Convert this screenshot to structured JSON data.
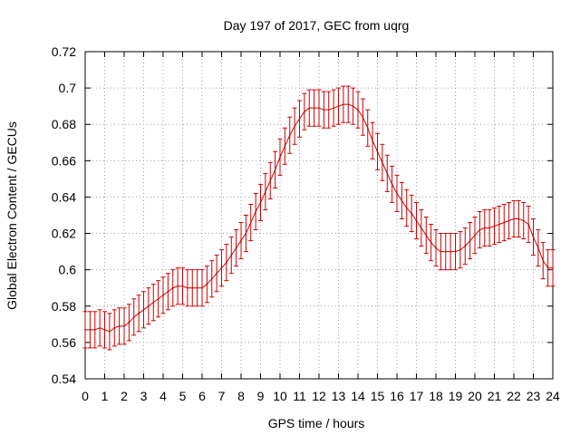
{
  "chart_data": {
    "type": "line",
    "title": "Day 197 of 2017, GEC from uqrg",
    "xlabel": "GPS time / hours",
    "ylabel": "Global Electron Content / GECUs",
    "xlim": [
      0,
      24
    ],
    "ylim": [
      0.54,
      0.72
    ],
    "xticks": [
      "0",
      "1",
      "2",
      "3",
      "4",
      "5",
      "6",
      "7",
      "8",
      "9",
      "10",
      "11",
      "12",
      "13",
      "14",
      "15",
      "16",
      "17",
      "18",
      "19",
      "20",
      "21",
      "22",
      "23",
      "24"
    ],
    "yticks": [
      "0.54",
      "0.56",
      "0.58",
      "0.6",
      "0.62",
      "0.64",
      "0.66",
      "0.68",
      "0.7",
      "0.72"
    ],
    "grid": true,
    "series": [
      {
        "color": "#cc0000",
        "error": 0.01,
        "x": [
          0,
          0.25,
          0.5,
          0.75,
          1,
          1.25,
          1.5,
          1.75,
          2,
          2.25,
          2.5,
          2.75,
          3,
          3.25,
          3.5,
          3.75,
          4,
          4.25,
          4.5,
          4.75,
          5,
          5.25,
          5.5,
          5.75,
          6,
          6.25,
          6.5,
          6.75,
          7,
          7.25,
          7.5,
          7.75,
          8,
          8.25,
          8.5,
          8.75,
          9,
          9.25,
          9.5,
          9.75,
          10,
          10.25,
          10.5,
          10.75,
          11,
          11.25,
          11.5,
          11.75,
          12,
          12.25,
          12.5,
          12.75,
          13,
          13.25,
          13.5,
          13.75,
          14,
          14.25,
          14.5,
          14.75,
          15,
          15.25,
          15.5,
          15.75,
          16,
          16.25,
          16.5,
          16.75,
          17,
          17.25,
          17.5,
          17.75,
          18,
          18.25,
          18.5,
          18.75,
          19,
          19.25,
          19.5,
          19.75,
          20,
          20.25,
          20.5,
          20.75,
          21,
          21.25,
          21.5,
          21.75,
          22,
          22.25,
          22.5,
          22.75,
          23,
          23.25,
          23.5,
          23.75,
          24
        ],
        "y": [
          0.567,
          0.567,
          0.567,
          0.568,
          0.567,
          0.566,
          0.568,
          0.569,
          0.569,
          0.571,
          0.574,
          0.576,
          0.578,
          0.58,
          0.582,
          0.584,
          0.586,
          0.588,
          0.59,
          0.591,
          0.591,
          0.59,
          0.59,
          0.59,
          0.59,
          0.592,
          0.595,
          0.598,
          0.601,
          0.604,
          0.608,
          0.612,
          0.616,
          0.62,
          0.626,
          0.632,
          0.637,
          0.643,
          0.649,
          0.655,
          0.662,
          0.668,
          0.674,
          0.679,
          0.683,
          0.687,
          0.689,
          0.689,
          0.689,
          0.688,
          0.688,
          0.689,
          0.69,
          0.691,
          0.691,
          0.69,
          0.688,
          0.684,
          0.678,
          0.671,
          0.665,
          0.659,
          0.653,
          0.647,
          0.642,
          0.638,
          0.634,
          0.631,
          0.627,
          0.623,
          0.619,
          0.615,
          0.612,
          0.61,
          0.61,
          0.61,
          0.61,
          0.611,
          0.613,
          0.616,
          0.619,
          0.622,
          0.623,
          0.623,
          0.624,
          0.625,
          0.626,
          0.627,
          0.628,
          0.628,
          0.627,
          0.625,
          0.618,
          0.612,
          0.605,
          0.601,
          0.601
        ]
      }
    ]
  }
}
